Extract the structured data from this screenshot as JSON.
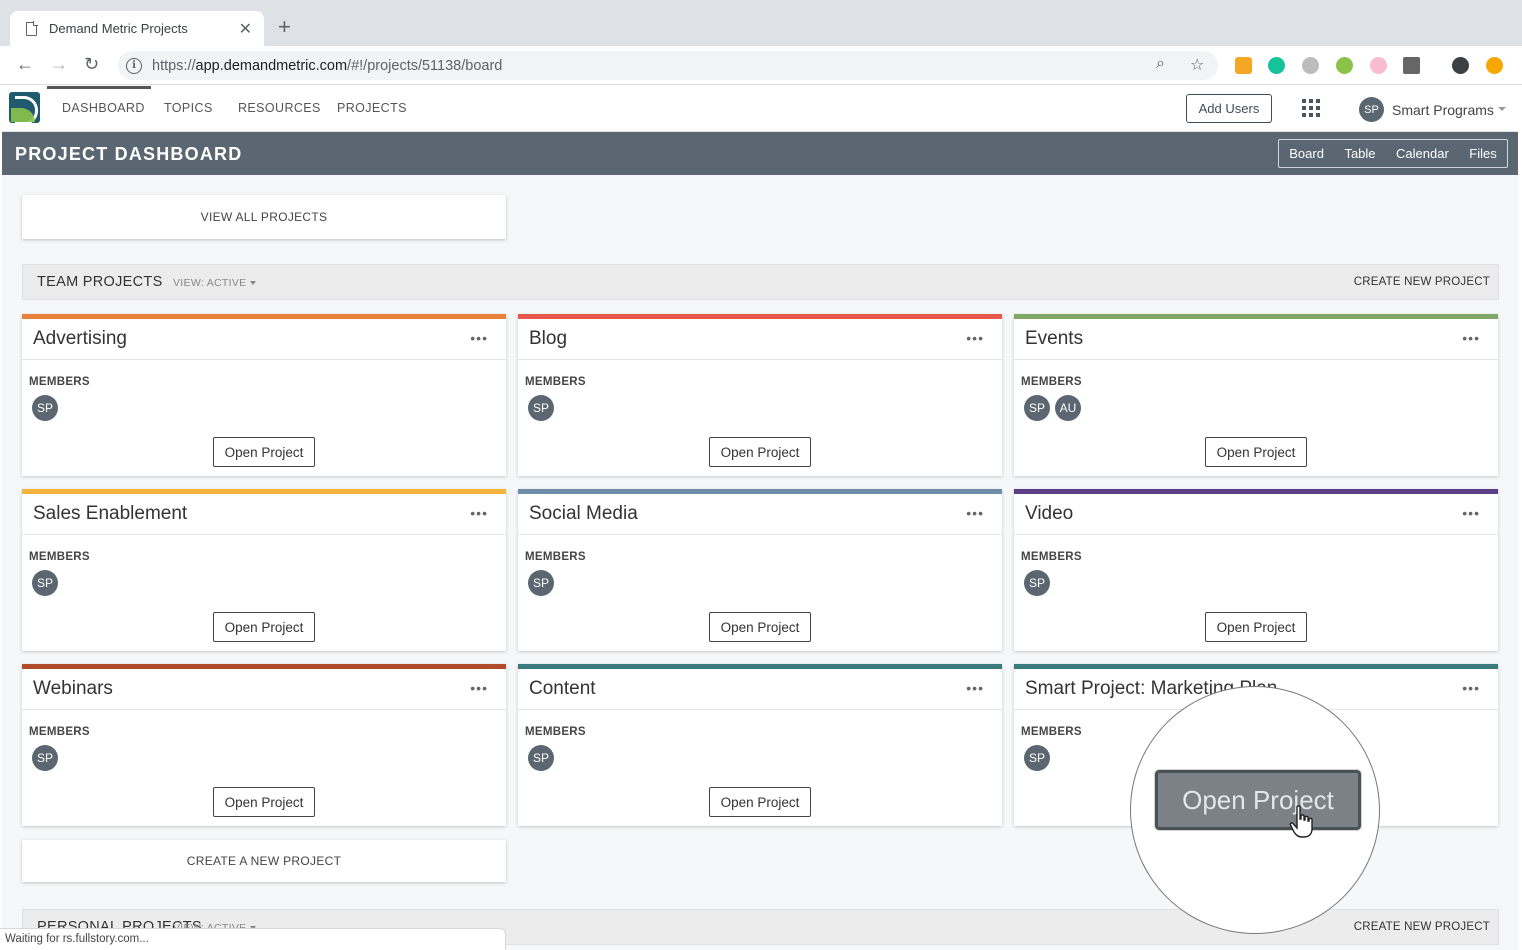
{
  "browser": {
    "tab_title": "Demand Metric Projects",
    "url_scheme": "https://",
    "url_host": "app.demandmetric.com",
    "url_path": "/#!/projects/51138/board",
    "status_text": "Waiting for rs.fullstory.com..."
  },
  "nav": {
    "items": [
      "DASHBOARD",
      "TOPICS",
      "RESOURCES",
      "PROJECTS"
    ],
    "add_users": "Add Users",
    "user_initials": "SP",
    "user_name": "Smart Programs"
  },
  "dashboard": {
    "title": "PROJECT DASHBOARD",
    "views": [
      "Board",
      "Table",
      "Calendar",
      "Files"
    ]
  },
  "view_all": "VIEW ALL PROJECTS",
  "team_section": {
    "title": "TEAM PROJECTS",
    "view_filter": "VIEW: ACTIVE",
    "create": "CREATE NEW PROJECT"
  },
  "card_labels": {
    "members": "MEMBERS",
    "open": "Open Project",
    "more": "•••"
  },
  "projects": [
    {
      "title": "Advertising",
      "color": "#e8813a",
      "members": [
        "SP"
      ]
    },
    {
      "title": "Blog",
      "color": "#e7574b",
      "members": [
        "SP"
      ]
    },
    {
      "title": "Events",
      "color": "#7fa866",
      "members": [
        "SP",
        "AU"
      ]
    },
    {
      "title": "Sales Enablement",
      "color": "#f3b33d",
      "members": [
        "SP"
      ]
    },
    {
      "title": "Social Media",
      "color": "#6d8ea8",
      "members": [
        "SP"
      ]
    },
    {
      "title": "Video",
      "color": "#5a3f86",
      "members": [
        "SP"
      ]
    },
    {
      "title": "Webinars",
      "color": "#b24a2c",
      "members": [
        "SP"
      ]
    },
    {
      "title": "Content",
      "color": "#3b7a7e",
      "members": [
        "SP"
      ]
    },
    {
      "title": "Smart Project: Marketing Plan",
      "color": "#3b7a7e",
      "members": [
        "SP"
      ]
    }
  ],
  "create_new": "CREATE A NEW PROJECT",
  "personal_section": {
    "title": "PERSONAL PROJECTS",
    "view_filter": "VIEW: ACTIVE",
    "create": "CREATE NEW PROJECT"
  },
  "magnifier": {
    "label": "Open Project"
  }
}
